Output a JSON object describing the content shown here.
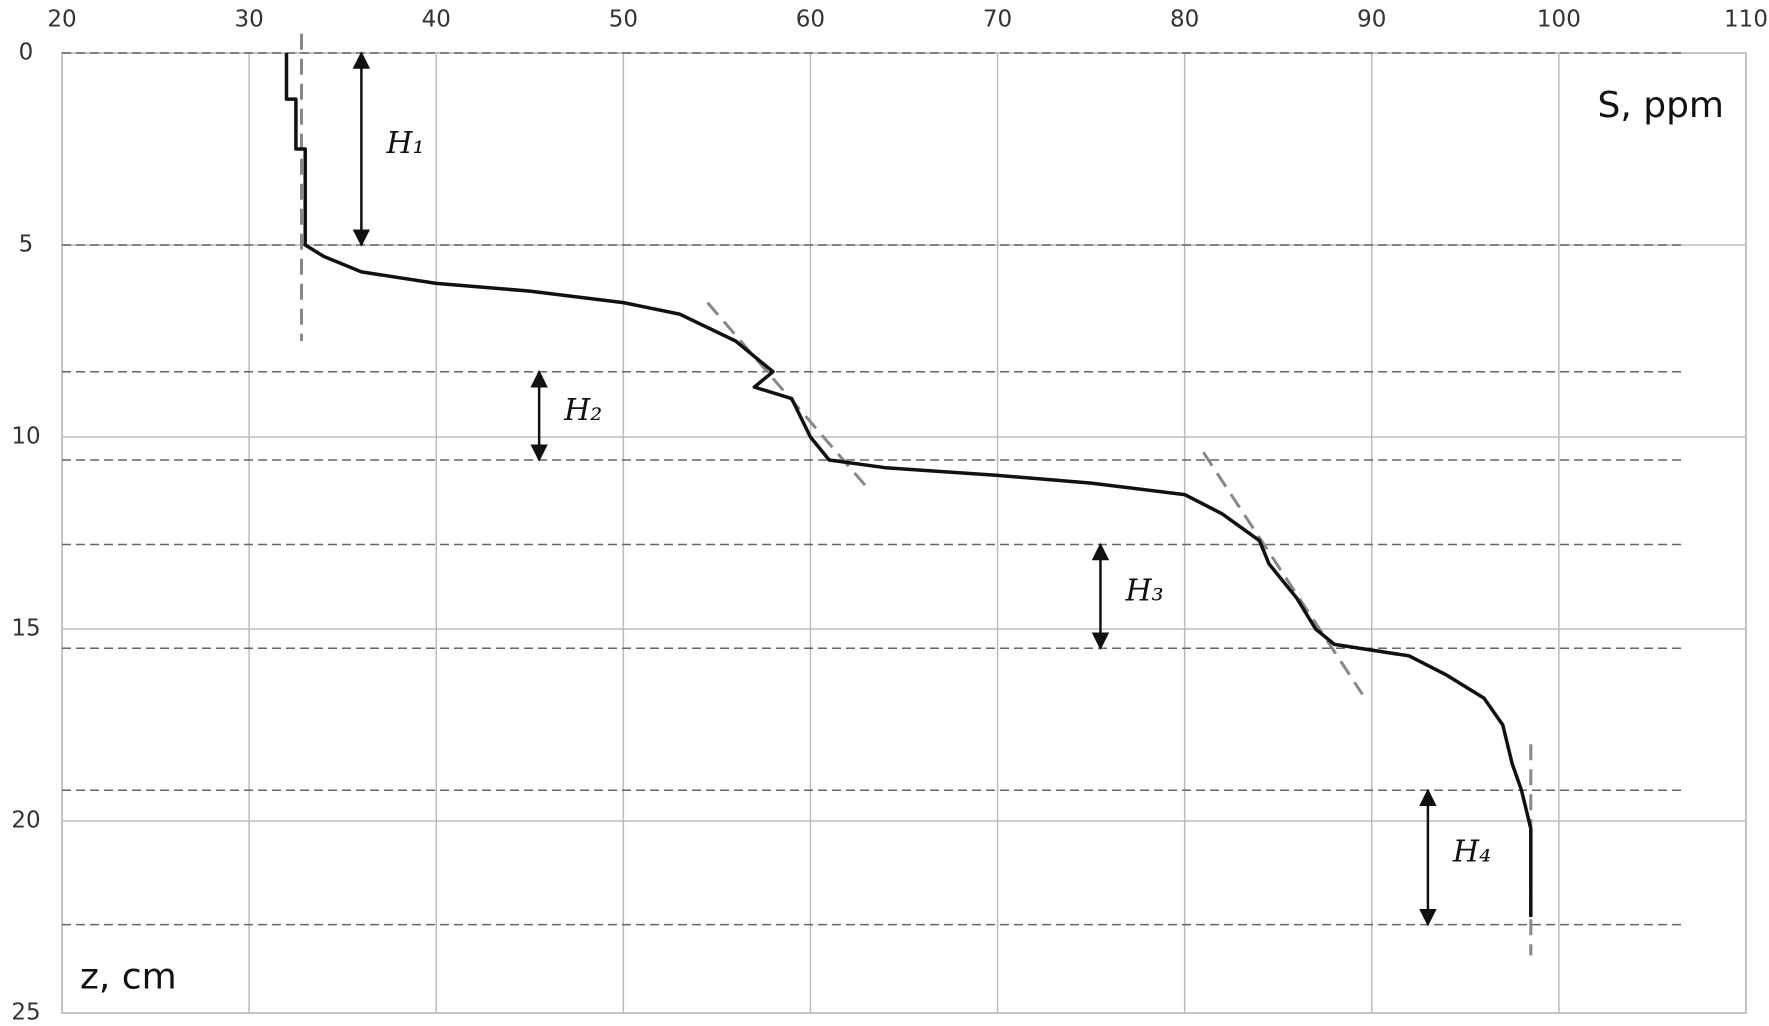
{
  "chart_data": {
    "type": "line",
    "x_label": "S, ppm",
    "y_label": "z, cm",
    "xlim": [
      20,
      110
    ],
    "ylim": [
      0,
      25
    ],
    "xticks": [
      20,
      30,
      40,
      50,
      60,
      70,
      80,
      90,
      100,
      110
    ],
    "yticks": [
      0,
      5,
      10,
      15,
      20,
      25
    ],
    "grid": true,
    "y_inverted": true,
    "x_axis_position": "top",
    "color": "#111111",
    "x": [
      32,
      32,
      32.5,
      32.5,
      33,
      33,
      33,
      34,
      36,
      40,
      45,
      50,
      53,
      56,
      58,
      57,
      59,
      60,
      61,
      64,
      70,
      75,
      80,
      82,
      84,
      84.5,
      86,
      87,
      88,
      92,
      94,
      96,
      97,
      97.5,
      98,
      98.5,
      98.5
    ],
    "values": [
      0,
      1.2,
      1.2,
      2.5,
      2.5,
      3.6,
      5,
      5.3,
      5.7,
      6,
      6.2,
      6.5,
      6.8,
      7.5,
      8.3,
      8.7,
      9,
      10,
      10.6,
      10.8,
      11,
      11.2,
      11.5,
      12,
      12.7,
      13.3,
      14.2,
      15,
      15.4,
      15.7,
      16.2,
      16.8,
      17.5,
      18.5,
      19.2,
      20.2,
      22.5
    ],
    "fit_color": "#888888",
    "fit_lines": [
      {
        "x": [
          32.8,
          32.8
        ],
        "values": [
          -0.5,
          7.5
        ]
      },
      {
        "x": [
          54.5,
          63
        ],
        "values": [
          6.5,
          11.3
        ]
      },
      {
        "x": [
          81,
          89.5
        ],
        "values": [
          10.4,
          16.7
        ]
      },
      {
        "x": [
          98.5,
          98.5
        ],
        "values": [
          18,
          23.5
        ]
      }
    ],
    "boundaries": [
      0,
      5,
      8.3,
      10.6,
      12.8,
      15.5,
      19.2,
      22.7
    ],
    "annotations": [
      {
        "label": "H₁",
        "x": 36,
        "z": [
          0,
          5
        ]
      },
      {
        "label": "H₂",
        "x": 45.5,
        "z": [
          8.3,
          10.6
        ]
      },
      {
        "label": "H₃",
        "x": 75.5,
        "z": [
          12.8,
          15.5
        ]
      },
      {
        "label": "H₄",
        "x": 93,
        "z": [
          19.2,
          22.7
        ]
      }
    ]
  }
}
